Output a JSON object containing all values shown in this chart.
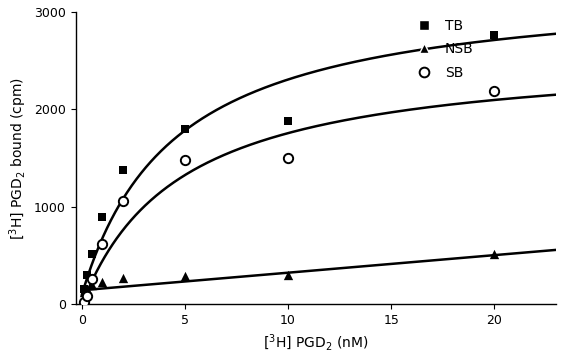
{
  "title": "",
  "xlabel": "[$^{3}$H] PGD$_{2}$ (nM)",
  "ylabel": "[$^{3}$H] PGD$_{2}$ bound (cpm)",
  "xlim": [
    -0.3,
    23
  ],
  "ylim": [
    0,
    3000
  ],
  "xticks": [
    0,
    5,
    10,
    15,
    20
  ],
  "yticks": [
    0,
    1000,
    2000,
    3000
  ],
  "TB_x": [
    0.1,
    0.25,
    0.5,
    1.0,
    2.0,
    5.0,
    10.0,
    20.0
  ],
  "TB_y": [
    160,
    300,
    520,
    900,
    1380,
    1800,
    1880,
    2760
  ],
  "NSB_x": [
    0.1,
    0.25,
    0.5,
    1.0,
    2.0,
    5.0,
    10.0,
    20.0
  ],
  "NSB_y": [
    130,
    160,
    200,
    230,
    270,
    290,
    300,
    520
  ],
  "SB_x": [
    0.1,
    0.25,
    0.5,
    1.0,
    2.0,
    5.0,
    10.0,
    20.0
  ],
  "SB_y": [
    20,
    90,
    260,
    620,
    1060,
    1480,
    1500,
    2190
  ],
  "TB_Bmax": 3200,
  "TB_Kd": 4.5,
  "TB_baseline": 100,
  "NSB_slope": 18,
  "NSB_baseline": 145,
  "SB_Bmax": 2600,
  "SB_Kd": 4.8,
  "SB_baseline": 0,
  "marker_color": "#000000",
  "line_color": "#000000",
  "background_color": "#ffffff",
  "fontsize_label": 10,
  "fontsize_tick": 9,
  "fontsize_legend": 10
}
